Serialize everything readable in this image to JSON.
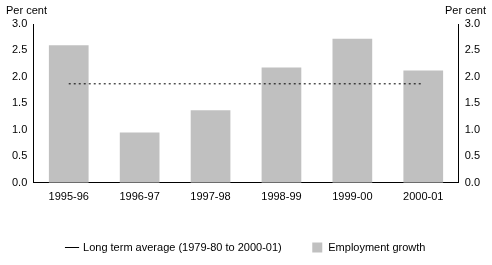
{
  "chart_data": {
    "type": "bar",
    "ylabel": "Per cent",
    "y2label": "Per cent",
    "categories": [
      "1995-96",
      "1996-97",
      "1997-98",
      "1998-99",
      "1999-00",
      "2000-01"
    ],
    "series": [
      {
        "name": "Employment growth",
        "type": "bar",
        "color": "#c0c0c0",
        "values": [
          2.6,
          0.95,
          1.37,
          2.18,
          2.72,
          2.12
        ]
      },
      {
        "name": "Long term average (1979-80 to 2000-01)",
        "type": "line",
        "line_style": "dotted",
        "color": "#000000",
        "values": [
          1.87,
          1.87,
          1.87,
          1.87,
          1.87,
          1.87
        ]
      }
    ],
    "ylim": [
      0,
      3
    ],
    "yticks": [
      {
        "value": 0,
        "label": "0.0"
      },
      0.5,
      {
        "value": 1,
        "label": "1.0"
      },
      1.5,
      {
        "value": 2,
        "label": "2.0"
      },
      2.5,
      {
        "value": 3,
        "label": "3.0"
      }
    ],
    "y2lim": [
      0,
      3
    ],
    "y2ticks": [
      {
        "value": 0,
        "label": "0.0"
      },
      0.5,
      {
        "value": 1,
        "label": "1.0"
      },
      1.5,
      {
        "value": 2,
        "label": "2.0"
      },
      2.5,
      {
        "value": 3,
        "label": "3.0"
      }
    ],
    "grid": false,
    "legend": "bottom"
  }
}
